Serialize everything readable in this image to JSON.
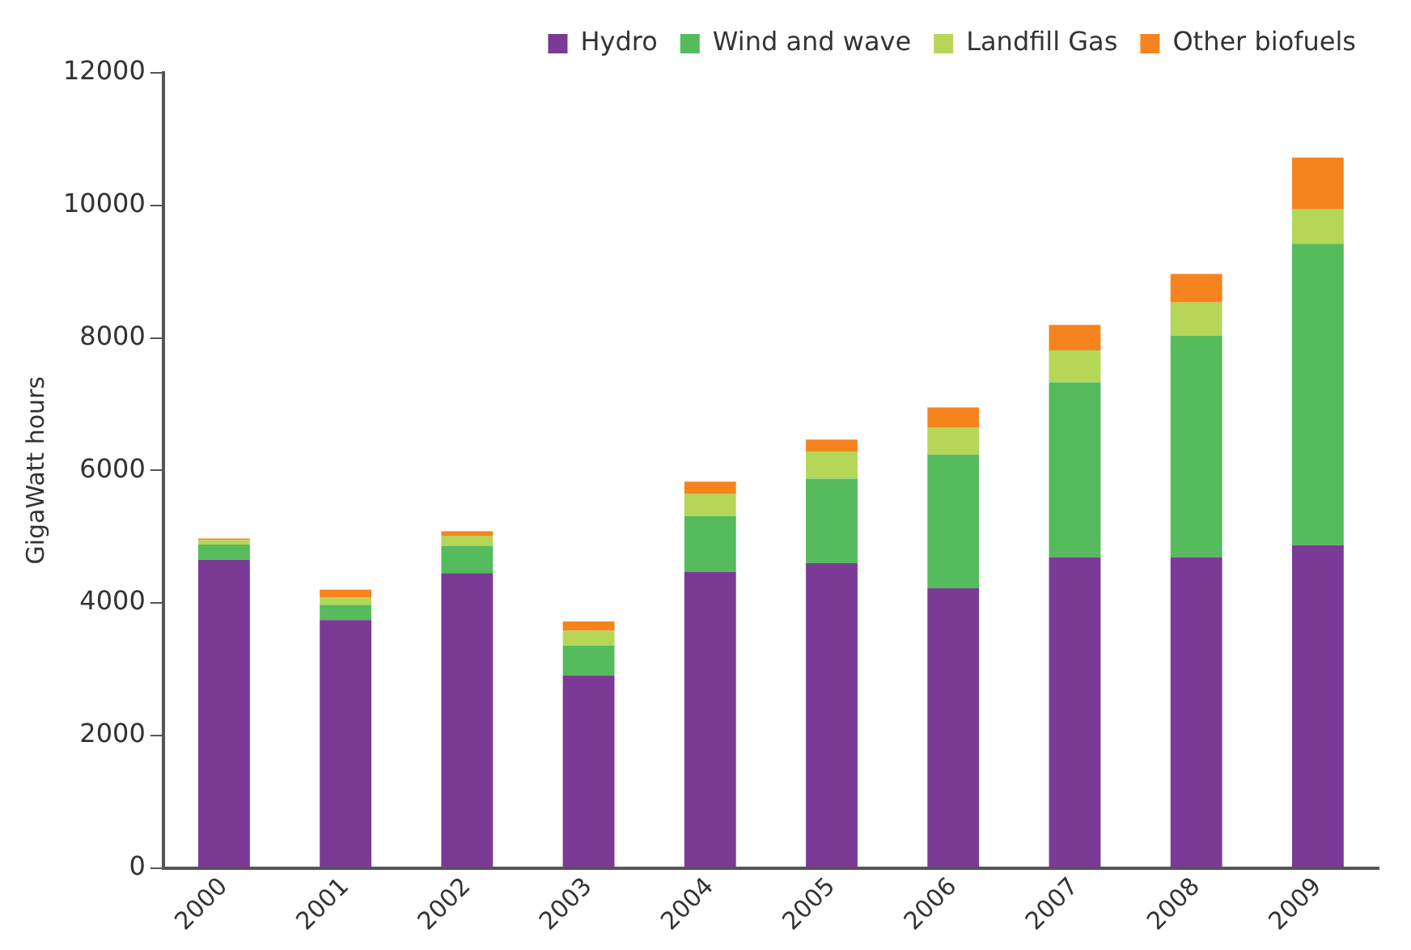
{
  "chart_data": {
    "type": "bar",
    "stacked": true,
    "ylabel": "GigaWatt hours",
    "categories": [
      "2000",
      "2001",
      "2002",
      "2003",
      "2004",
      "2005",
      "2006",
      "2007",
      "2008",
      "2009"
    ],
    "series": [
      {
        "name": "Hydro",
        "color": "#7b3a96",
        "values": [
          4650,
          3740,
          4450,
          2900,
          4470,
          4600,
          4220,
          4690,
          4690,
          4870
        ]
      },
      {
        "name": "Wind and wave",
        "color": "#55bb5d",
        "values": [
          230,
          230,
          410,
          455,
          840,
          1275,
          2020,
          2640,
          3345,
          4550
        ]
      },
      {
        "name": "Landfill Gas",
        "color": "#b5d657",
        "values": [
          70,
          115,
          155,
          225,
          340,
          410,
          410,
          480,
          500,
          520
        ]
      },
      {
        "name": "Other biofuels",
        "color": "#f5841f",
        "values": [
          20,
          115,
          65,
          140,
          180,
          180,
          300,
          385,
          430,
          780
        ]
      }
    ],
    "ylim": [
      0,
      12000
    ],
    "yticks": [
      0,
      2000,
      4000,
      6000,
      8000,
      10000,
      12000
    ],
    "grid": false,
    "legend": "top right"
  }
}
